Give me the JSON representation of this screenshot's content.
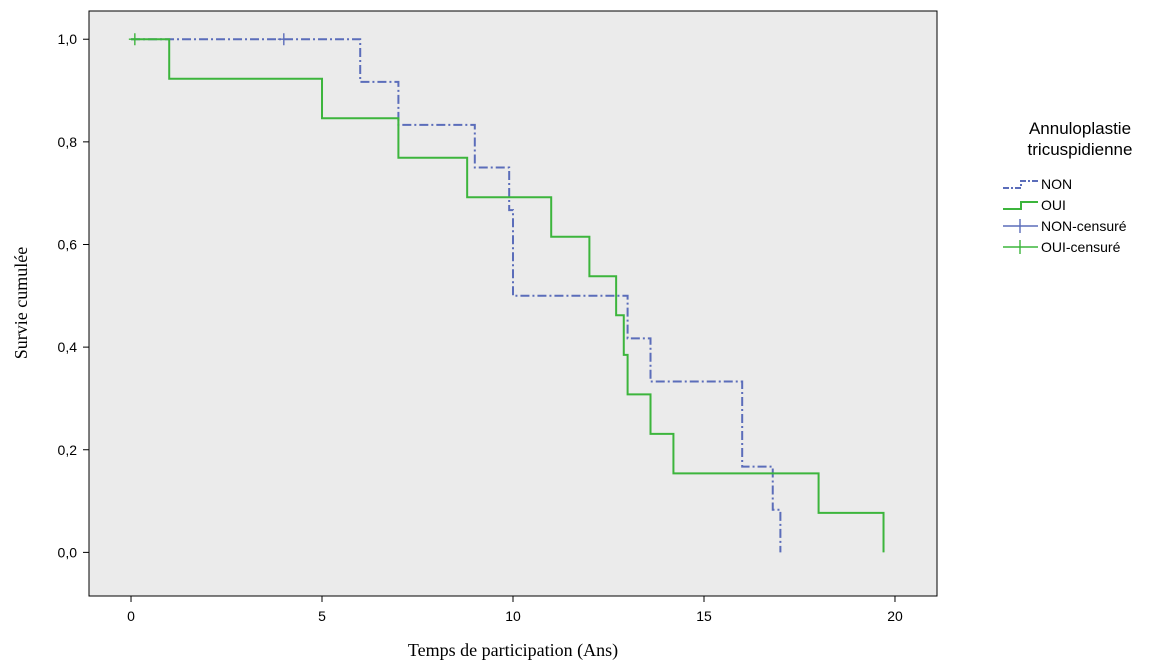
{
  "chart_data": {
    "type": "line",
    "subtype": "kaplan-meier",
    "xlabel": "Temps de participation (Ans)",
    "ylabel": "Survie cumulée",
    "xlim": [
      -1.1,
      21.1
    ],
    "ylim": [
      -0.085,
      1.055
    ],
    "xticks": [
      0,
      5,
      10,
      15,
      20
    ],
    "xtick_labels": [
      "0",
      "5",
      "10",
      "15",
      "20"
    ],
    "yticks": [
      0.0,
      0.2,
      0.4,
      0.6,
      0.8,
      1.0
    ],
    "ytick_labels": [
      "0,0",
      "0,2",
      "0,4",
      "0,6",
      "0,8",
      "1,0"
    ],
    "grid": false,
    "plot_background": "#ebebeb",
    "legend": {
      "title_lines": [
        "Annuloplastie",
        "tricuspidienne"
      ],
      "position": "right",
      "entries": [
        {
          "label": "NON",
          "kind": "step",
          "color": "#5b6dba",
          "dashed": true
        },
        {
          "label": "OUI",
          "kind": "step",
          "color": "#3cb53c",
          "dashed": false
        },
        {
          "label": "NON-censuré",
          "kind": "censor",
          "color": "#5b6dba"
        },
        {
          "label": "OUI-censuré",
          "kind": "censor",
          "color": "#3cb53c"
        }
      ]
    },
    "series": [
      {
        "name": "NON",
        "color": "#5b6dba",
        "dashed": true,
        "steps": [
          [
            0,
            1.0
          ],
          [
            6.0,
            0.917
          ],
          [
            7.0,
            0.833
          ],
          [
            9.0,
            0.75
          ],
          [
            9.9,
            0.667
          ],
          [
            10.0,
            0.5
          ],
          [
            13.0,
            0.417
          ],
          [
            13.6,
            0.333
          ],
          [
            16.0,
            0.167
          ],
          [
            16.8,
            0.083
          ],
          [
            17.0,
            0.0
          ]
        ],
        "censored": [
          [
            4.0,
            1.0
          ]
        ]
      },
      {
        "name": "OUI",
        "color": "#3cb53c",
        "dashed": false,
        "steps": [
          [
            0,
            1.0
          ],
          [
            1.0,
            0.923
          ],
          [
            5.0,
            0.846
          ],
          [
            7.0,
            0.769
          ],
          [
            8.8,
            0.692
          ],
          [
            11.0,
            0.615
          ],
          [
            12.0,
            0.538
          ],
          [
            12.7,
            0.462
          ],
          [
            12.9,
            0.385
          ],
          [
            13.0,
            0.308
          ],
          [
            13.6,
            0.231
          ],
          [
            14.2,
            0.154
          ],
          [
            18.0,
            0.077
          ],
          [
            19.7,
            0.0
          ]
        ],
        "censored": [
          [
            0.1,
            1.0
          ]
        ]
      }
    ]
  }
}
